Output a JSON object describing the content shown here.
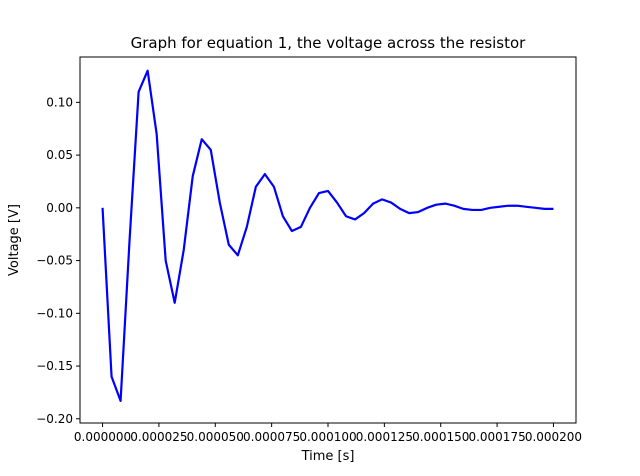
{
  "chart_data": {
    "type": "line",
    "title": "Graph for equation 1, the voltage across the resistor",
    "xlabel": "Time [s]",
    "ylabel": "Voltage [V]",
    "xlim": [
      -1e-05,
      0.00021
    ],
    "ylim": [
      -0.204,
      0.143
    ],
    "grid": false,
    "x_ticks": [
      0,
      2.5e-05,
      5e-05,
      7.5e-05,
      0.0001,
      0.000125,
      0.00015,
      0.000175,
      0.0002
    ],
    "x_tick_labels": [
      "0.000000",
      "0.000025",
      "0.000050",
      "0.000075",
      "0.000100",
      "0.000125",
      "0.000150",
      "0.000175",
      "0.000200"
    ],
    "y_ticks": [
      -0.2,
      -0.15,
      -0.1,
      -0.05,
      0.0,
      0.05,
      0.1
    ],
    "y_tick_labels": [
      "−0.20",
      "−0.15",
      "−0.10",
      "−0.05",
      "0.00",
      "0.05",
      "0.10"
    ],
    "series": [
      {
        "color": "#0000ff",
        "x": [
          0.0,
          4e-06,
          8e-06,
          1.2e-05,
          1.6e-05,
          2e-05,
          2.4e-05,
          2.8e-05,
          3.2e-05,
          3.6e-05,
          4e-05,
          4.4e-05,
          4.8e-05,
          5.2e-05,
          5.6e-05,
          6e-05,
          6.4e-05,
          6.8e-05,
          7.2e-05,
          7.6e-05,
          8e-05,
          8.4e-05,
          8.8e-05,
          9.2e-05,
          9.6e-05,
          0.0001,
          0.000104,
          0.000108,
          0.000112,
          0.000116,
          0.00012,
          0.000124,
          0.000128,
          0.000132,
          0.000136,
          0.00014,
          0.000144,
          0.000148,
          0.000152,
          0.000156,
          0.00016,
          0.000164,
          0.000168,
          0.000172,
          0.000176,
          0.00018,
          0.000184,
          0.000188,
          0.000192,
          0.000196,
          0.0002
        ],
        "y": [
          0.0,
          -0.16,
          -0.183,
          -0.03,
          0.11,
          0.13,
          0.07,
          -0.05,
          -0.09,
          -0.04,
          0.03,
          0.065,
          0.055,
          0.005,
          -0.035,
          -0.045,
          -0.018,
          0.02,
          0.032,
          0.02,
          -0.008,
          -0.022,
          -0.018,
          0.0,
          0.014,
          0.016,
          0.005,
          -0.008,
          -0.011,
          -0.005,
          0.004,
          0.008,
          0.005,
          -0.001,
          -0.005,
          -0.004,
          0.0,
          0.003,
          0.004,
          0.002,
          -0.001,
          -0.002,
          -0.002,
          0.0,
          0.001,
          0.002,
          0.002,
          0.001,
          0.0,
          -0.001,
          -0.001
        ]
      }
    ]
  }
}
